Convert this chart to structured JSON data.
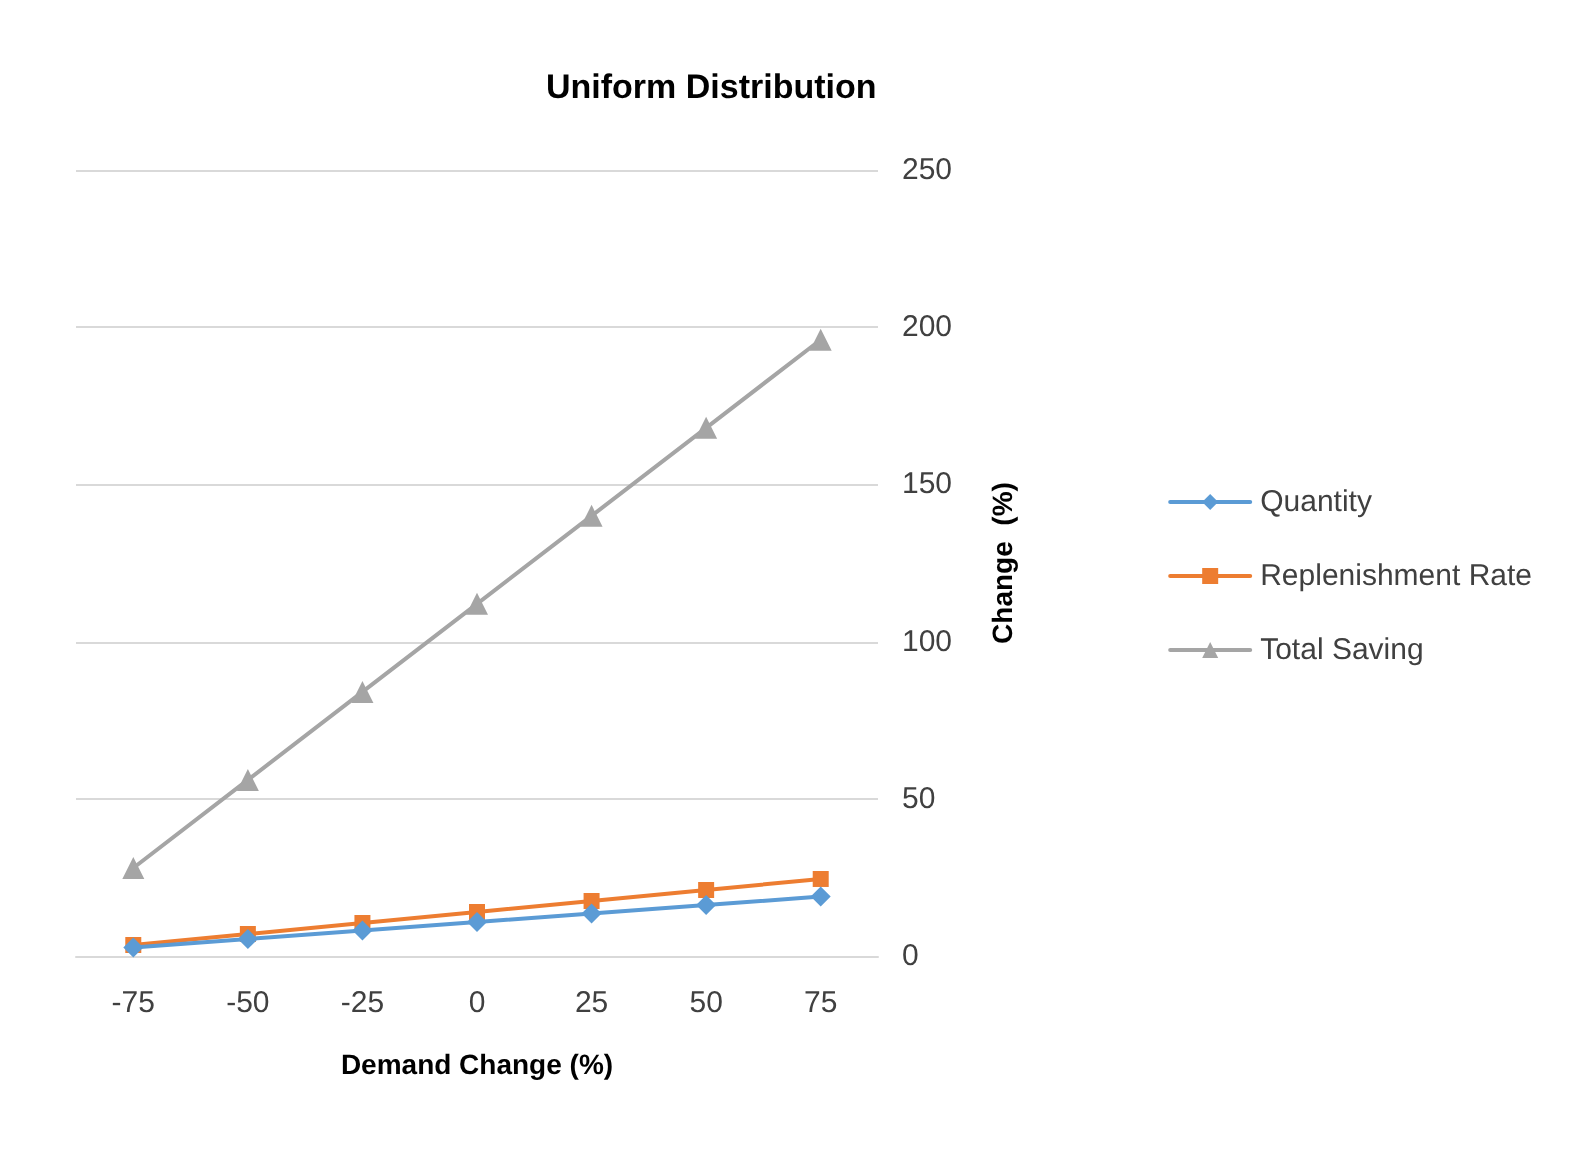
{
  "chart_data": {
    "type": "line",
    "title": "Uniform Distribution",
    "xlabel": "Demand Change (%)",
    "ylabel": "Change  (%)",
    "categories": [
      "-75",
      "-50",
      "-25",
      "0",
      "25",
      "50",
      "75"
    ],
    "series": [
      {
        "name": "Quantity",
        "color": "#5b9bd5",
        "marker": "diamond",
        "values": [
          2.7,
          5.4,
          8.1,
          10.8,
          13.5,
          16.2,
          18.9
        ]
      },
      {
        "name": "Replenishment Rate",
        "color": "#ed7d31",
        "marker": "square",
        "values": [
          3.5,
          7,
          10.5,
          14,
          17.5,
          21,
          24.5
        ]
      },
      {
        "name": "Total Saving",
        "color": "#a5a5a5",
        "marker": "triangle",
        "values": [
          28,
          56,
          84,
          112,
          140,
          168,
          196
        ]
      }
    ],
    "ylim": [
      0,
      250
    ],
    "yticks": [
      0,
      50,
      100,
      150,
      200,
      250
    ],
    "grid": "y",
    "legend": "right",
    "line_style": "solid"
  }
}
